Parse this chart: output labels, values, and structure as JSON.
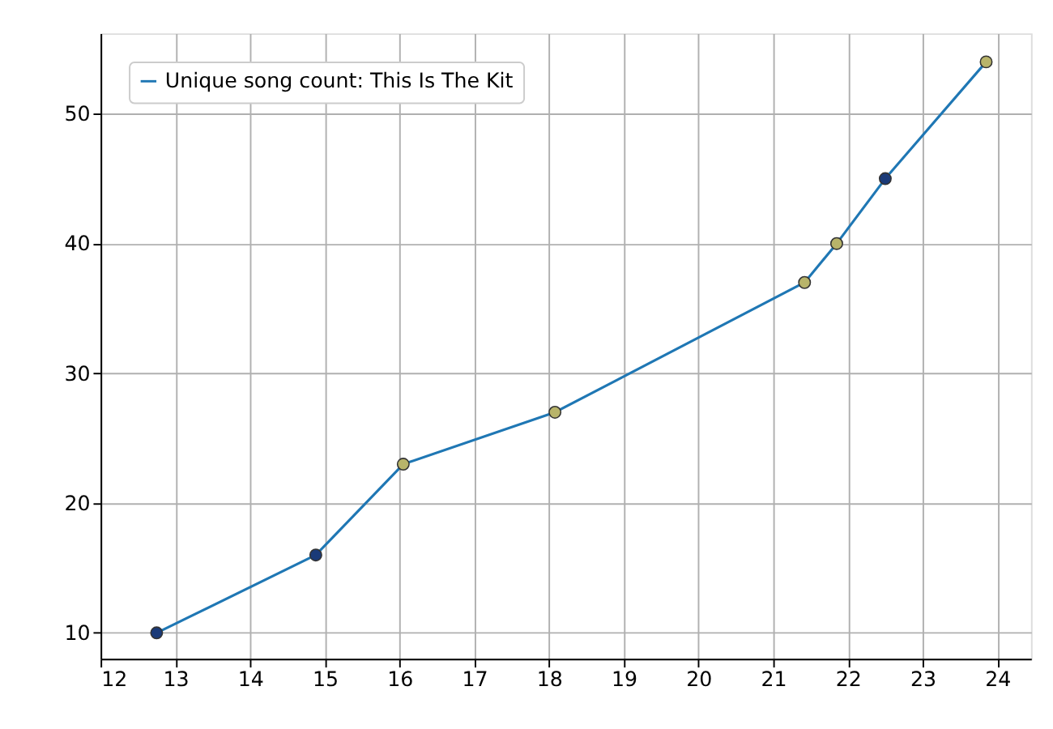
{
  "chart_data": {
    "type": "line",
    "x": [
      12.75,
      14.88,
      16.05,
      18.08,
      21.42,
      21.85,
      22.5,
      23.85
    ],
    "series": [
      {
        "name": "Unique song count: This Is The Kit",
        "color": "#1f77b4",
        "values": [
          10,
          16,
          23,
          27,
          37,
          40,
          45,
          54
        ],
        "marker": "none"
      },
      {
        "type": "scatter",
        "colors": [
          "#1a3a78",
          "#1a3a78",
          "#b8b46a",
          "#b8b46a",
          "#b8b46a",
          "#b8b46a",
          "#1a3a78",
          "#b8b46a"
        ],
        "values": [
          10,
          16,
          23,
          27,
          37,
          40,
          45,
          54
        ],
        "marker": "circle"
      }
    ],
    "xlim": [
      12,
      24.45
    ],
    "ylim": [
      8,
      56.2
    ],
    "xticks": [
      12,
      13,
      14,
      15,
      16,
      17,
      18,
      19,
      20,
      21,
      22,
      23,
      24
    ],
    "yticks": [
      10,
      20,
      30,
      40,
      50
    ],
    "grid": true,
    "legend": "top left"
  }
}
